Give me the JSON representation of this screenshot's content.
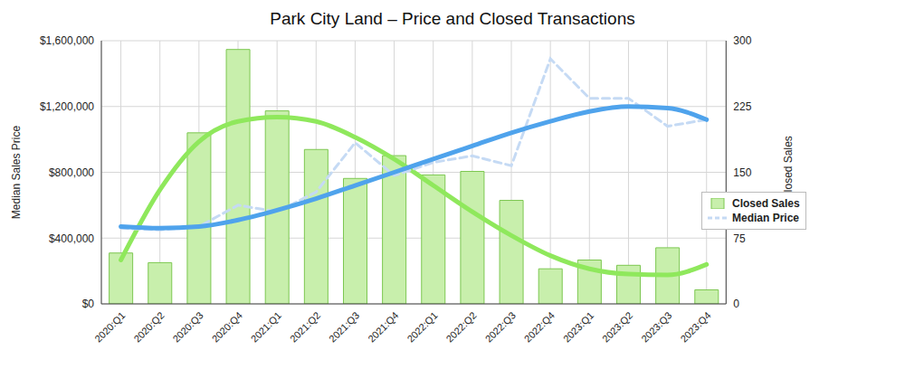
{
  "chart_data": {
    "type": "combo",
    "title": "Park City Land – Price and Closed Transactions",
    "y_label": "Median Sales Price",
    "y2_label": "# Closed Sales",
    "categories": [
      "2020:Q1",
      "2020:Q2",
      "2020:Q3",
      "2020:Q4",
      "2021:Q1",
      "2021:Q2",
      "2021:Q3",
      "2021:Q4",
      "2022:Q1",
      "2022:Q2",
      "2022:Q3",
      "2022:Q4",
      "2023:Q1",
      "2023:Q2",
      "2023:Q3",
      "2023:Q4"
    ],
    "ylim": [
      0,
      1600000
    ],
    "yticks": [
      {
        "value": 0,
        "label": "$0"
      },
      {
        "value": 400000,
        "label": "$400,000"
      },
      {
        "value": 800000,
        "label": "$800,000"
      },
      {
        "value": 1200000,
        "label": "$1,200,000"
      },
      {
        "value": 1600000,
        "label": "$1,600,000"
      }
    ],
    "y2lim": [
      0,
      300
    ],
    "y2ticks": [
      0,
      75,
      150,
      225,
      300
    ],
    "grid": true,
    "legend": "right",
    "series": [
      {
        "name": "Closed Sales",
        "type": "bar",
        "axis": "y2",
        "color": "#c8efac",
        "values": [
          58,
          47,
          195,
          290,
          220,
          176,
          143,
          169,
          147,
          151,
          118,
          40,
          50,
          44,
          64,
          16
        ]
      },
      {
        "type": "line",
        "axis": "y2",
        "color": "#8fe85c",
        "line_style": "solid",
        "values": [
          50,
          130,
          185,
          208,
          213,
          208,
          190,
          165,
          135,
          105,
          78,
          55,
          40,
          34,
          33,
          45
        ]
      },
      {
        "name": "Median Price",
        "type": "line",
        "color": "#c5daf4",
        "line_style": "dashed",
        "values": [
          460000,
          450000,
          470000,
          600000,
          560000,
          680000,
          980000,
          780000,
          860000,
          900000,
          840000,
          1490000,
          1250000,
          1250000,
          1080000,
          1120000
        ]
      },
      {
        "type": "line",
        "color": "#4fa3ec",
        "line_style": "solid",
        "values": [
          470000,
          460000,
          470000,
          510000,
          570000,
          640000,
          720000,
          800000,
          880000,
          960000,
          1040000,
          1110000,
          1170000,
          1200000,
          1190000,
          1120000
        ]
      }
    ]
  }
}
